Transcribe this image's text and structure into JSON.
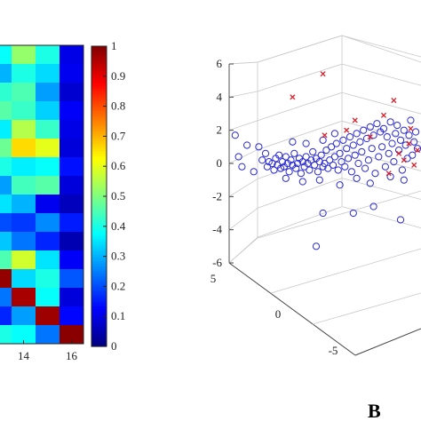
{
  "panels": {
    "b_label": "B"
  },
  "chart_data": [
    {
      "type": "heatmap",
      "title": "",
      "xlabel": "",
      "ylabel": "",
      "x_ticks": [
        "14",
        "16"
      ],
      "colorbar": {
        "ticks": [
          "0",
          "0.1",
          "0.2",
          "0.3",
          "0.4",
          "0.5",
          "0.6",
          "0.7",
          "0.8",
          "0.9",
          "1"
        ],
        "range": [
          0,
          1
        ],
        "colormap": "jet"
      },
      "visible_columns": [
        13,
        14,
        15,
        16
      ],
      "cells": [
        [
          0.38,
          0.52,
          0.4,
          0.1
        ],
        [
          0.3,
          0.4,
          0.34,
          0.11
        ],
        [
          0.42,
          0.45,
          0.28,
          0.08
        ],
        [
          0.46,
          0.43,
          0.33,
          0.12
        ],
        [
          0.36,
          0.55,
          0.43,
          0.1
        ],
        [
          0.48,
          0.66,
          0.6,
          0.09
        ],
        [
          0.4,
          0.36,
          0.38,
          0.14
        ],
        [
          0.28,
          0.44,
          0.46,
          0.09
        ],
        [
          0.35,
          0.3,
          0.11,
          0.06
        ],
        [
          0.2,
          0.18,
          0.26,
          0.15
        ],
        [
          0.32,
          0.24,
          0.16,
          0.05
        ],
        [
          0.45,
          0.58,
          0.35,
          0.12
        ],
        [
          0.98,
          0.34,
          0.4,
          0.21
        ],
        [
          0.24,
          0.96,
          0.38,
          0.09
        ],
        [
          0.16,
          0.28,
          0.97,
          0.13
        ],
        [
          0.4,
          0.38,
          0.24,
          0.99
        ]
      ]
    },
    {
      "type": "scatter",
      "title": "",
      "xlabel": "",
      "ylabel": "",
      "zlabel": "",
      "z_ticks": [
        "6",
        "4",
        "2",
        "0",
        "-2",
        "-4",
        "-6"
      ],
      "y_ticks": [
        "5",
        "0",
        "-5"
      ],
      "zlim": [
        -6,
        6
      ],
      "grid": true,
      "series": [
        {
          "marker": "circle",
          "color": "#2b2bd6",
          "points": [
            [
              -1.2,
              0.2
            ],
            [
              -1.0,
              0.6
            ],
            [
              -0.9,
              -0.2
            ],
            [
              -0.8,
              0.1
            ],
            [
              -0.6,
              0.0
            ],
            [
              -0.5,
              -0.4
            ],
            [
              -0.4,
              0.3
            ],
            [
              -0.3,
              -0.1
            ],
            [
              -0.2,
              0.5
            ],
            [
              -0.1,
              -0.3
            ],
            [
              0.0,
              0.1
            ],
            [
              0.1,
              -0.2
            ],
            [
              0.2,
              0.4
            ],
            [
              0.3,
              0.0
            ],
            [
              0.4,
              -0.5
            ],
            [
              0.5,
              0.2
            ],
            [
              0.6,
              -0.1
            ],
            [
              0.7,
              0.6
            ],
            [
              0.8,
              -0.3
            ],
            [
              0.9,
              0.0
            ],
            [
              1.0,
              0.3
            ],
            [
              1.1,
              -0.6
            ],
            [
              1.2,
              0.1
            ],
            [
              1.3,
              -0.2
            ],
            [
              1.4,
              0.4
            ],
            [
              1.5,
              0.0
            ],
            [
              1.6,
              -0.4
            ],
            [
              1.7,
              0.2
            ],
            [
              1.8,
              0.7
            ],
            [
              1.9,
              -0.1
            ],
            [
              2.0,
              0.3
            ],
            [
              2.1,
              -0.5
            ],
            [
              2.2,
              0.1
            ],
            [
              2.3,
              0.5
            ],
            [
              2.4,
              -0.2
            ],
            [
              2.5,
              0.0
            ],
            [
              2.6,
              0.8
            ],
            [
              2.7,
              -0.3
            ],
            [
              2.8,
              0.2
            ],
            [
              2.9,
              1.0
            ],
            [
              3.0,
              -0.1
            ],
            [
              3.1,
              0.4
            ],
            [
              3.2,
              1.2
            ],
            [
              3.3,
              -0.4
            ],
            [
              3.4,
              0.6
            ],
            [
              3.5,
              0.1
            ],
            [
              3.6,
              1.4
            ],
            [
              3.7,
              -0.2
            ],
            [
              3.8,
              0.9
            ],
            [
              3.9,
              0.3
            ],
            [
              4.0,
              1.6
            ],
            [
              4.1,
              -0.5
            ],
            [
              4.2,
              1.1
            ],
            [
              4.3,
              0.5
            ],
            [
              4.4,
              1.8
            ],
            [
              4.5,
              0.0
            ],
            [
              4.6,
              1.3
            ],
            [
              4.7,
              0.7
            ],
            [
              4.8,
              2.0
            ],
            [
              4.9,
              -0.3
            ],
            [
              5.0,
              1.5
            ],
            [
              5.1,
              0.2
            ],
            [
              5.2,
              2.2
            ],
            [
              5.3,
              0.9
            ],
            [
              5.4,
              1.7
            ],
            [
              5.5,
              -0.6
            ],
            [
              5.6,
              2.4
            ],
            [
              5.7,
              0.4
            ],
            [
              5.8,
              1.9
            ],
            [
              5.9,
              1.0
            ],
            [
              6.0,
              2.1
            ],
            [
              6.1,
              -0.2
            ],
            [
              6.2,
              1.6
            ],
            [
              6.3,
              0.6
            ],
            [
              6.4,
              2.5
            ],
            [
              6.5,
              1.2
            ],
            [
              6.6,
              0.1
            ],
            [
              6.7,
              1.8
            ],
            [
              6.8,
              2.3
            ],
            [
              6.9,
              0.8
            ],
            [
              7.0,
              1.4
            ],
            [
              7.1,
              -0.4
            ],
            [
              7.2,
              2.0
            ],
            [
              7.3,
              1.1
            ],
            [
              7.4,
              0.3
            ],
            [
              7.5,
              1.7
            ],
            [
              7.6,
              2.6
            ],
            [
              7.7,
              0.5
            ],
            [
              7.8,
              1.3
            ],
            [
              7.9,
              1.9
            ],
            [
              8.0,
              0.9
            ],
            [
              -2.8,
              1.7
            ],
            [
              -2.1,
              1.1
            ],
            [
              -2.4,
              -0.2
            ],
            [
              -1.7,
              -0.5
            ],
            [
              -1.4,
              1.0
            ],
            [
              -2.6,
              0.4
            ],
            [
              0.6,
              1.3
            ],
            [
              1.4,
              1.2
            ],
            [
              2.4,
              1.4
            ],
            [
              3.1,
              1.8
            ],
            [
              0.2,
              -0.9
            ],
            [
              1.2,
              -1.1
            ],
            [
              2.2,
              -1.0
            ],
            [
              3.4,
              -1.3
            ],
            [
              4.4,
              -0.9
            ],
            [
              5.2,
              -1.2
            ],
            [
              6.4,
              -0.8
            ],
            [
              7.2,
              -1.0
            ],
            [
              2.4,
              -3.0
            ],
            [
              4.2,
              -3.0
            ],
            [
              2.0,
              -5.0
            ],
            [
              5.4,
              -2.6
            ],
            [
              7.0,
              -3.4
            ],
            [
              8.2,
              -4.3
            ]
          ]
        },
        {
          "marker": "x",
          "color": "#d91f2a",
          "points": [
            [
              -3.3,
              -0.4
            ],
            [
              0.6,
              4.0
            ],
            [
              2.4,
              5.4
            ],
            [
              2.5,
              1.7
            ],
            [
              3.8,
              2.0
            ],
            [
              4.3,
              2.6
            ],
            [
              5.2,
              1.6
            ],
            [
              6.0,
              2.9
            ],
            [
              6.6,
              3.8
            ],
            [
              6.9,
              0.6
            ],
            [
              7.2,
              0.2
            ],
            [
              7.5,
              1.2
            ],
            [
              7.8,
              -0.1
            ],
            [
              8.0,
              0.8
            ],
            [
              8.2,
              0.4
            ],
            [
              7.6,
              2.1
            ],
            [
              8.4,
              1.5
            ],
            [
              6.3,
              -0.6
            ]
          ]
        }
      ]
    }
  ]
}
